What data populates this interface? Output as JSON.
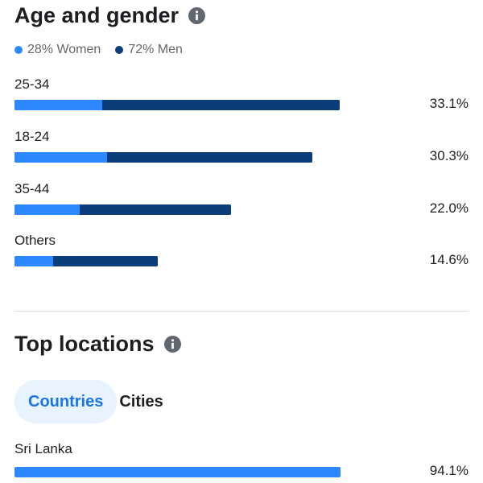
{
  "age_gender": {
    "title": "Age and gender",
    "legend": {
      "women": "28% Women",
      "men": "72% Men"
    },
    "colors": {
      "women": "#2d88ff",
      "men": "#0a3d7a"
    },
    "rows": [
      {
        "label": "25-34",
        "percent_label": "33.1%",
        "percent": 33.1,
        "women_fraction": 0.27
      },
      {
        "label": "18-24",
        "percent_label": "30.3%",
        "percent": 30.3,
        "women_fraction": 0.31
      },
      {
        "label": "35-44",
        "percent_label": "22.0%",
        "percent": 22.0,
        "women_fraction": 0.3
      },
      {
        "label": "Others",
        "percent_label": "14.6%",
        "percent": 14.6,
        "women_fraction": 0.27
      }
    ]
  },
  "top_locations": {
    "title": "Top locations",
    "tabs": [
      {
        "label": "Countries",
        "active": true
      },
      {
        "label": "Cities",
        "active": false
      }
    ],
    "rows": [
      {
        "label": "Sri Lanka",
        "percent_label": "94.1%",
        "percent": 94.1
      }
    ]
  },
  "icons": {
    "info": "info-icon"
  }
}
